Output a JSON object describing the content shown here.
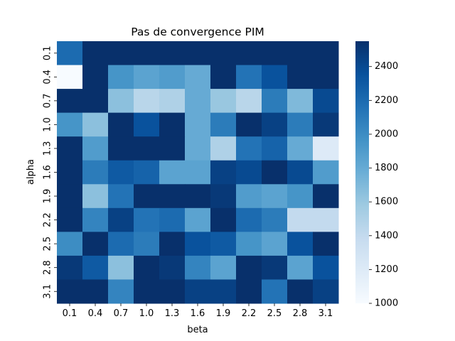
{
  "chart_data": {
    "type": "heatmap",
    "title": "Pas de convergence PIM",
    "xlabel": "beta",
    "ylabel": "alpha",
    "x_categories": [
      "0.1",
      "0.4",
      "0.7",
      "1.0",
      "1.3",
      "1.6",
      "1.9",
      "2.2",
      "2.5",
      "2.8",
      "3.1"
    ],
    "y_categories": [
      "0.1",
      "0.4",
      "0.7",
      "1.0",
      "1.3",
      "1.6",
      "1.9",
      "2.2",
      "2.5",
      "2.8",
      "3.1"
    ],
    "values": [
      [
        2200,
        2550,
        2550,
        2550,
        2550,
        2550,
        2550,
        2550,
        2550,
        2550,
        2550
      ],
      [
        1000,
        2550,
        1950,
        1850,
        1900,
        1800,
        2550,
        2150,
        2350,
        2550,
        2550
      ],
      [
        2550,
        2550,
        1650,
        1450,
        1500,
        1800,
        1600,
        1450,
        2100,
        1700,
        2400
      ],
      [
        1950,
        1650,
        2550,
        2350,
        2550,
        1800,
        2100,
        2550,
        2450,
        2100,
        2500
      ],
      [
        2550,
        1900,
        2550,
        2550,
        2550,
        1800,
        1500,
        2150,
        2250,
        1800,
        1200
      ],
      [
        2550,
        2100,
        2300,
        2250,
        1850,
        1850,
        2450,
        2400,
        2550,
        2400,
        1900
      ],
      [
        2550,
        1650,
        2150,
        2550,
        2550,
        2550,
        2500,
        1900,
        1850,
        1950,
        2550
      ],
      [
        2550,
        2050,
        2450,
        2150,
        2200,
        1850,
        2550,
        2200,
        2100,
        1400,
        1400
      ],
      [
        2000,
        2550,
        2200,
        2100,
        2550,
        2350,
        2300,
        1950,
        1850,
        2350,
        2550
      ],
      [
        2500,
        2300,
        1650,
        2550,
        2500,
        2050,
        1850,
        2550,
        2500,
        1850,
        2350
      ],
      [
        2550,
        2550,
        2050,
        2550,
        2550,
        2450,
        2450,
        2550,
        2150,
        2550,
        2450
      ]
    ],
    "vmin": 1000,
    "vmax": 2550,
    "colorbar_ticks": [
      1000,
      1200,
      1400,
      1600,
      1800,
      2000,
      2200,
      2400
    ],
    "colormap": "Blues",
    "colormap_stops": [
      "#f7fbff",
      "#deebf7",
      "#c6dbef",
      "#9ecae1",
      "#6baed6",
      "#4292c6",
      "#2171b5",
      "#08519c",
      "#08306b"
    ]
  }
}
